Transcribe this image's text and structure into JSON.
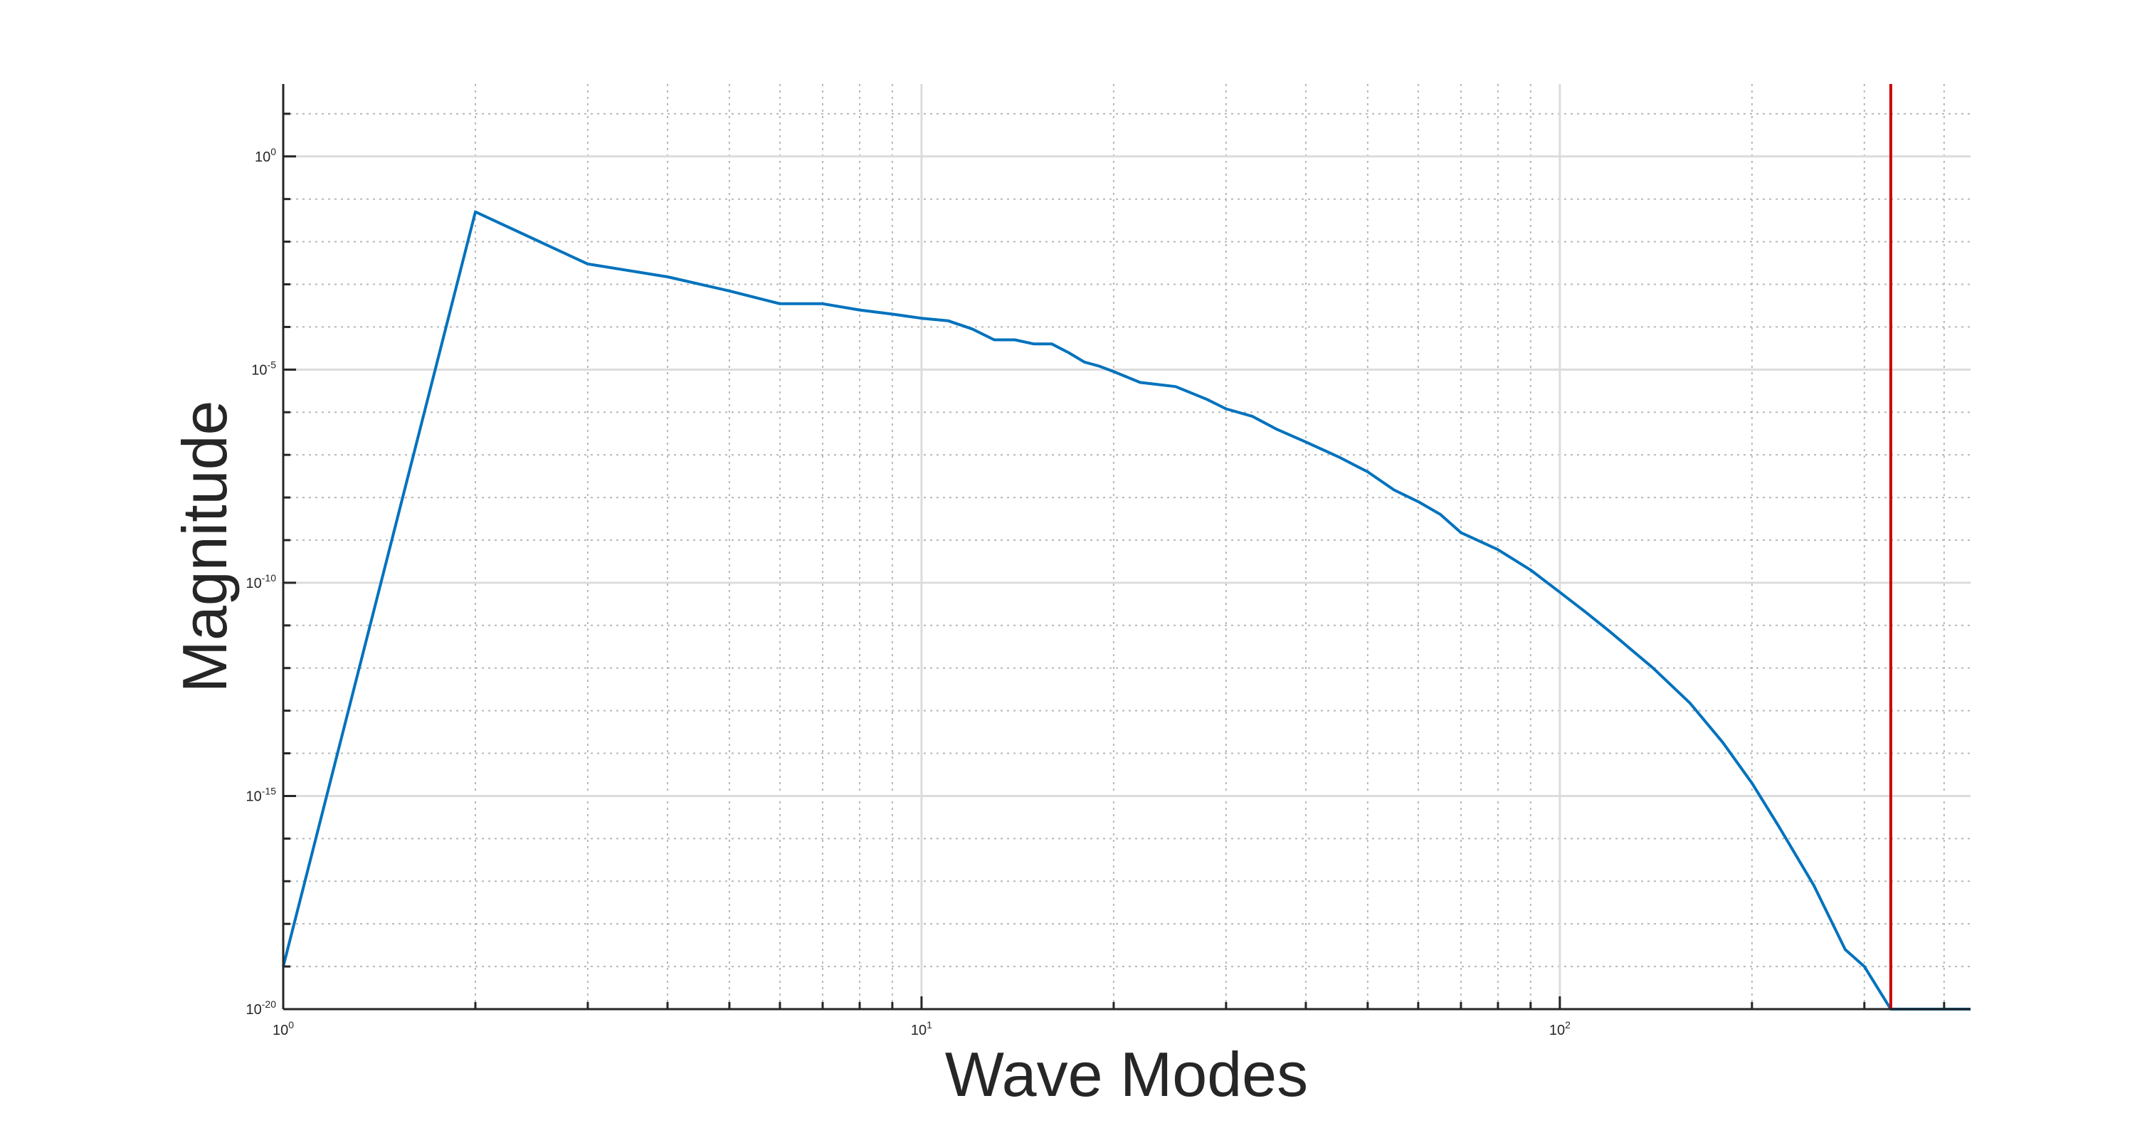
{
  "chart_data": {
    "type": "line",
    "title": "",
    "xlabel": "Wave Modes",
    "ylabel": "Magnitude",
    "xscale": "log",
    "yscale": "log",
    "xlim": [
      1,
      440
    ],
    "ylim": [
      1e-20,
      50
    ],
    "grid": true,
    "minor_grid": true,
    "legend": "none",
    "x_ticks": [
      {
        "value": 1,
        "base": "10",
        "exp": "0"
      },
      {
        "value": 10,
        "base": "10",
        "exp": "1"
      },
      {
        "value": 100,
        "base": "10",
        "exp": "2"
      }
    ],
    "y_ticks": [
      {
        "value": 1,
        "base": "10",
        "exp": "0"
      },
      {
        "value": 1e-05,
        "base": "10",
        "exp": "-5"
      },
      {
        "value": 1e-10,
        "base": "10",
        "exp": "-10"
      },
      {
        "value": 1e-15,
        "base": "10",
        "exp": "-15"
      },
      {
        "value": 1e-20,
        "base": "10",
        "exp": "-20"
      }
    ],
    "series": [
      {
        "color": "#0072BD",
        "x": [
          1,
          2,
          3,
          4,
          5,
          6,
          7,
          8,
          9,
          10,
          11,
          12,
          13,
          14,
          15,
          16,
          17,
          18,
          19,
          20,
          22,
          25,
          28,
          30,
          33,
          36,
          40,
          45,
          50,
          55,
          60,
          65,
          70,
          80,
          90,
          100,
          110,
          120,
          140,
          160,
          180,
          200,
          220,
          250,
          280,
          300,
          330,
          340,
          360,
          380,
          400,
          420,
          440
        ],
        "y": [
          1e-19,
          0.05,
          0.003,
          0.0015,
          0.0007,
          0.00035,
          0.00035,
          0.00025,
          0.0002,
          0.00016,
          0.00014,
          9e-05,
          5e-05,
          5e-05,
          4e-05,
          4e-05,
          2.5e-05,
          1.5e-05,
          1.2e-05,
          9e-06,
          5e-06,
          4e-06,
          2e-06,
          1.2e-06,
          8e-07,
          4e-07,
          2e-07,
          9e-08,
          4e-08,
          1.5e-08,
          8e-09,
          4e-09,
          1.5e-09,
          6e-10,
          2e-10,
          6e-11,
          2e-11,
          7e-12,
          1e-12,
          1.5e-13,
          1.8e-14,
          2e-15,
          2e-16,
          8e-18,
          2.5e-19,
          1e-19,
          1e-20,
          1e-20,
          1e-20,
          1e-20,
          1e-20,
          1e-20,
          1e-20
        ]
      }
    ],
    "vertical_line": {
      "x": 330,
      "color": "#CC0000"
    }
  }
}
